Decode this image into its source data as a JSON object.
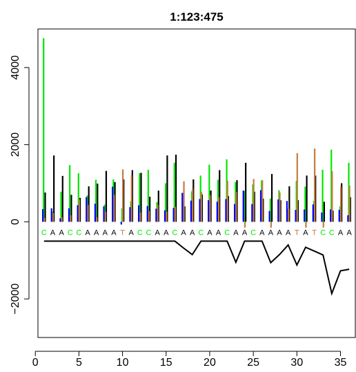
{
  "chart_data": {
    "type": "bar",
    "title": "1:123:475",
    "xlabel": "",
    "ylabel": "",
    "xlim": [
      0.3,
      36.7
    ],
    "ylim": [
      -3000,
      5000
    ],
    "x_ticks": [
      0,
      5,
      10,
      15,
      20,
      25,
      30,
      35
    ],
    "y_ticks": [
      -2000,
      0,
      2000,
      4000
    ],
    "grid": false,
    "legend": "none",
    "colors": {
      "A": "#000000",
      "C": "#00e600",
      "G": "#0000ff",
      "T": "#c87a3a"
    },
    "channel_order": [
      "A",
      "C",
      "G",
      "T"
    ],
    "bases": [
      "C",
      "A",
      "A",
      "C",
      "C",
      "A",
      "A",
      "A",
      "A",
      "T",
      "A",
      "C",
      "C",
      "A",
      "A",
      "C",
      "A",
      "A",
      "C",
      "A",
      "A",
      "C",
      "A",
      "A",
      "C",
      "A",
      "A",
      "A",
      "A",
      "T",
      "A",
      "T",
      "C",
      "C",
      "A",
      "A"
    ],
    "base_label_y": -270,
    "series": [
      {
        "name": "A",
        "values": [
          760,
          1720,
          1190,
          700,
          620,
          920,
          990,
          1320,
          1030,
          1100,
          1340,
          1270,
          650,
          810,
          1720,
          1740,
          400,
          1100,
          710,
          810,
          1340,
          670,
          1080,
          1530,
          780,
          600,
          1240,
          560,
          920,
          560,
          1200,
          1200,
          520,
          290,
          1000,
          640
        ]
      },
      {
        "name": "C",
        "values": [
          4760,
          270,
          780,
          1470,
          1260,
          680,
          1090,
          450,
          1100,
          350,
          530,
          1260,
          1350,
          510,
          1000,
          1530,
          490,
          790,
          1200,
          1480,
          1090,
          1620,
          1030,
          800,
          970,
          1070,
          600,
          820,
          300,
          1060,
          910,
          540,
          1350,
          1870,
          400,
          1530
        ]
      },
      {
        "name": "G",
        "values": [
          330,
          350,
          90,
          350,
          430,
          640,
          470,
          400,
          910,
          -70,
          380,
          430,
          410,
          340,
          300,
          360,
          750,
          550,
          590,
          560,
          520,
          590,
          460,
          810,
          460,
          820,
          280,
          580,
          540,
          310,
          320,
          450,
          240,
          320,
          310,
          170
        ]
      },
      {
        "name": "T",
        "values": [
          100,
          230,
          120,
          170,
          580,
          440,
          120,
          260,
          700,
          1360,
          1210,
          240,
          280,
          440,
          260,
          390,
          1050,
          860,
          780,
          690,
          640,
          1070,
          770,
          -150,
          1110,
          1080,
          -150,
          760,
          340,
          1780,
          -150,
          1900,
          -150,
          1310,
          910,
          940
        ]
      }
    ],
    "quality_line": {
      "name": "",
      "values": [
        -500,
        -500,
        -500,
        -500,
        -500,
        -500,
        -500,
        -500,
        -500,
        -500,
        -500,
        -500,
        -500,
        -500,
        -500,
        -500,
        -680,
        -850,
        -500,
        -500,
        -500,
        -500,
        -1050,
        -500,
        -500,
        -500,
        -1060,
        -850,
        -600,
        -1120,
        -660,
        -760,
        -860,
        -1860,
        -1270,
        -1230
      ]
    }
  }
}
